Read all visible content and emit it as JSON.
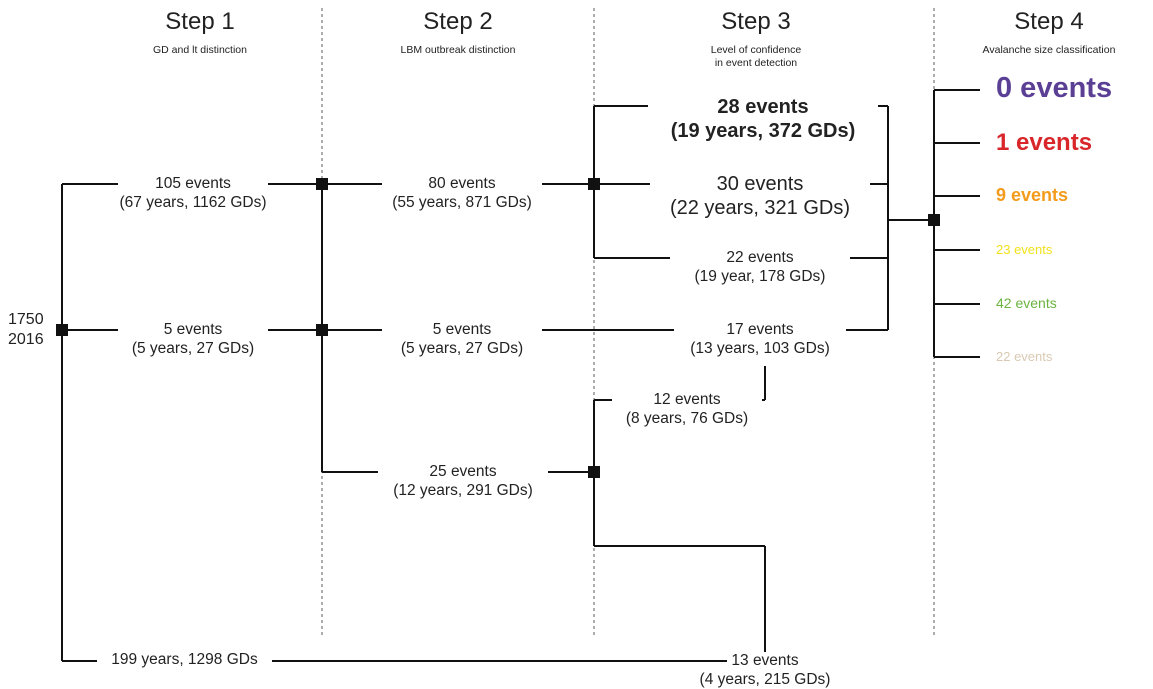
{
  "steps": [
    {
      "title": "Step 1",
      "subtitle": "GD and lt distinction"
    },
    {
      "title": "Step 2",
      "subtitle": "LBM outbreak distinction"
    },
    {
      "title": "Step 3",
      "subtitle_line1": "Level of confidence",
      "subtitle_line2": "in event detection"
    },
    {
      "title": "Step 4",
      "subtitle": "Avalanche size classification"
    }
  ],
  "root": {
    "start_year": "1750",
    "end_year": "2016"
  },
  "step1": {
    "branch_a": {
      "events": "105 events",
      "detail": "(67 years, 1162 GDs)"
    },
    "branch_b": {
      "events": "5 events",
      "detail": "(5 years, 27 GDs)"
    },
    "branch_c": {
      "detail": "199 years, 1298 GDs"
    }
  },
  "step2": {
    "branch_a": {
      "events": "80 events",
      "detail": "(55 years, 871 GDs)"
    },
    "branch_b": {
      "events": "5 events",
      "detail": "(5 years, 27 GDs)"
    },
    "branch_c": {
      "events": "25 events",
      "detail": "(12 years, 291 GDs)"
    }
  },
  "step3": {
    "high": {
      "events": "28 events",
      "detail": "(19 years, 372 GDs)"
    },
    "medium": {
      "events": "30 events",
      "detail": "(22 years, 321 GDs)"
    },
    "low": {
      "events": "22 events",
      "detail": "(19 year, 178 GDs)"
    },
    "other": {
      "events": "17 events",
      "detail": "(13 years, 103 GDs)"
    },
    "sub12": {
      "events": "12 events",
      "detail": "(8 years, 76 GDs)"
    },
    "sub13": {
      "events": "13 events",
      "detail": "(4 years, 215 GDs)"
    }
  },
  "step4": {
    "classes": [
      {
        "label": "0 events",
        "color": "#5b3f95"
      },
      {
        "label": "1 events",
        "color": "#d8262b"
      },
      {
        "label": "9 events",
        "color": "#f39b1b"
      },
      {
        "label": "23 events",
        "color": "#f2e21a"
      },
      {
        "label": "42 events",
        "color": "#6ab33f"
      },
      {
        "label": "22 events",
        "color": "#d9c9b3"
      }
    ]
  }
}
